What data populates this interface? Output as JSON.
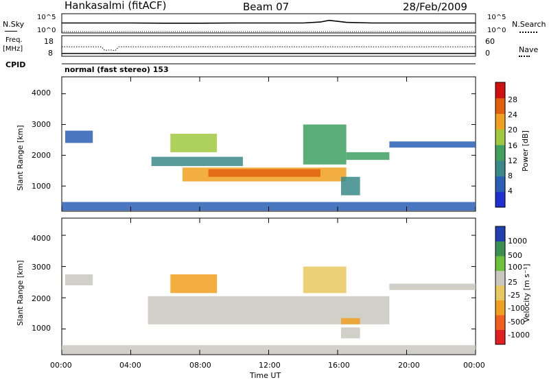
{
  "header": {
    "radar_title": "Hankasalmi (fitACF)",
    "beam_label": "Beam 07",
    "date_label": "28/Feb/2009"
  },
  "top_panels": {
    "nsky_label": "N.Sky",
    "nsky_left_ticks": [
      "10^5",
      "10^0"
    ],
    "nsearch_label": "N.Search",
    "nsearch_right_ticks": [
      "10^5",
      "10^0"
    ],
    "freq_label_1": "Freq.",
    "freq_label_2": "[MHz]",
    "freq_ticks": [
      "18",
      "8"
    ],
    "nave_label": "Nave",
    "nave_ticks": [
      "60",
      "0"
    ],
    "cpid_label": "CPID",
    "cpid_text": "normal (fast stereo) 153"
  },
  "power_panel": {
    "ylabel": "Slant Range [km]",
    "yticks": [
      "4000",
      "3000",
      "2000",
      "1000"
    ],
    "colorbar_label": "Power [dB]",
    "colorbar_ticks": [
      "28",
      "24",
      "20",
      "16",
      "12",
      "8",
      "4"
    ]
  },
  "velocity_panel": {
    "ylabel": "Slant Range [km]",
    "yticks": [
      "4000",
      "3000",
      "2000",
      "1000"
    ],
    "colorbar_label": "Velocity [m s⁻¹]",
    "colorbar_ticks": [
      "1000",
      "500",
      "100",
      "25",
      "-25",
      "-100",
      "-500",
      "-1000"
    ]
  },
  "x_axis": {
    "ticks": [
      "00:00",
      "04:00",
      "08:00",
      "12:00",
      "16:00",
      "20:00",
      "00:00"
    ],
    "xlabel": "Time UT"
  },
  "colors": {
    "power_scale": [
      "#1f2fd0",
      "#2a5fb5",
      "#3a8a8a",
      "#3fa060",
      "#a0c840",
      "#f0a020",
      "#e06010",
      "#d01010"
    ],
    "velocity_scale": [
      "#e02020",
      "#f06020",
      "#f0a020",
      "#e8c860",
      "#c8c8c0",
      "#70c040",
      "#3a9050",
      "#2040b0"
    ]
  },
  "chart_data": [
    {
      "type": "line",
      "title": "N.Sky / N.Search",
      "x_range_hours": [
        0,
        24
      ],
      "ylim_log10": [
        0,
        5
      ],
      "series": [
        {
          "name": "N.Sky",
          "x": [
            0,
            2,
            4,
            6,
            8,
            10,
            12,
            14,
            15,
            15.5,
            16,
            16.5,
            18,
            20,
            22,
            24
          ],
          "values_log10": [
            2.6,
            2.6,
            2.6,
            2.55,
            2.55,
            2.6,
            2.6,
            2.6,
            2.9,
            3.4,
            3.1,
            2.8,
            2.6,
            2.6,
            2.6,
            2.6
          ]
        },
        {
          "name": "N.Search",
          "x": [
            0,
            24
          ],
          "values_log10": [
            0,
            0
          ]
        }
      ]
    },
    {
      "type": "line",
      "title": "Freq. [MHz] / Nave",
      "x_range_hours": [
        0,
        24
      ],
      "ylim_freq": [
        8,
        18
      ],
      "series": [
        {
          "name": "Freq.",
          "x": [
            0,
            2.3,
            2.5,
            2.8,
            3.1,
            3.3,
            24
          ],
          "values": [
            12.5,
            12.5,
            10.5,
            10.8,
            10.4,
            12.5,
            12.5
          ]
        },
        {
          "name": "Nave",
          "x": [
            0,
            24
          ],
          "values": [
            2,
            2
          ]
        }
      ]
    },
    {
      "type": "heatmap",
      "title": "Power [dB]",
      "xlabel": "Time UT",
      "ylabel": "Slant Range [km]",
      "xlim_hours": [
        0,
        24
      ],
      "ylim_km": [
        180,
        4550
      ],
      "zlim": [
        0,
        32
      ],
      "regions": [
        {
          "t0": 0.0,
          "t1": 24.0,
          "r0": 200,
          "r1": 480,
          "value": 6
        },
        {
          "t0": 0.2,
          "t1": 1.8,
          "r0": 2400,
          "r1": 2800,
          "value": 6
        },
        {
          "t0": 5.2,
          "t1": 10.5,
          "r0": 1650,
          "r1": 1950,
          "value": 8
        },
        {
          "t0": 6.3,
          "t1": 9.0,
          "r0": 2100,
          "r1": 2700,
          "value": 18
        },
        {
          "t0": 7.0,
          "t1": 16.5,
          "r0": 1150,
          "r1": 1600,
          "value": 20
        },
        {
          "t0": 8.5,
          "t1": 15.0,
          "r0": 1300,
          "r1": 1550,
          "value": 25
        },
        {
          "t0": 14.0,
          "t1": 16.5,
          "r0": 1700,
          "r1": 3000,
          "value": 14
        },
        {
          "t0": 16.2,
          "t1": 17.3,
          "r0": 700,
          "r1": 1300,
          "value": 10
        },
        {
          "t0": 16.5,
          "t1": 19.0,
          "r0": 1850,
          "r1": 2100,
          "value": 12
        },
        {
          "t0": 19.0,
          "t1": 24.0,
          "r0": 2250,
          "r1": 2450,
          "value": 6
        }
      ]
    },
    {
      "type": "heatmap",
      "title": "Velocity [m s⁻¹]",
      "xlabel": "Time UT",
      "ylabel": "Slant Range [km]",
      "xlim_hours": [
        0,
        24
      ],
      "ylim_km": [
        180,
        4550
      ],
      "zlim": [
        -1000,
        1000
      ],
      "regions": [
        {
          "t0": 0.0,
          "t1": 24.0,
          "r0": 200,
          "r1": 480,
          "value": 60
        },
        {
          "t0": 0.2,
          "t1": 1.8,
          "r0": 2400,
          "r1": 2750,
          "value": 0
        },
        {
          "t0": 5.0,
          "t1": 19.0,
          "r0": 1150,
          "r1": 2050,
          "value": 0
        },
        {
          "t0": 6.3,
          "t1": 9.0,
          "r0": 2150,
          "r1": 2750,
          "value": -300
        },
        {
          "t0": 14.0,
          "t1": 16.5,
          "r0": 2150,
          "r1": 3000,
          "value": -150
        },
        {
          "t0": 16.2,
          "t1": 17.3,
          "r0": 1150,
          "r1": 1350,
          "value": -400
        },
        {
          "t0": 16.2,
          "t1": 17.3,
          "r0": 700,
          "r1": 1050,
          "value": 0
        },
        {
          "t0": 19.0,
          "t1": 24.0,
          "r0": 2250,
          "r1": 2450,
          "value": 0
        }
      ]
    }
  ]
}
